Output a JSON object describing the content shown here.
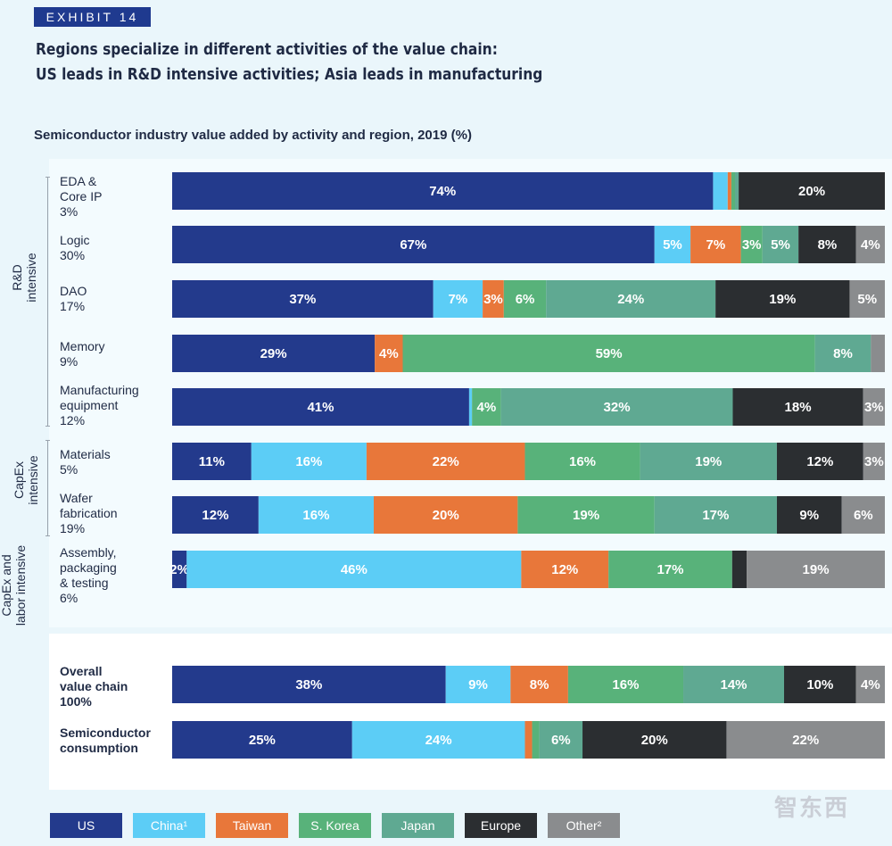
{
  "header": {
    "exhibit": "EXHIBIT 14",
    "title_line1": "Regions specialize in different activities of the value chain:",
    "title_line2": "US leads in R&D intensive activities; Asia leads in manufacturing"
  },
  "colors": {
    "US": "#233a8c",
    "China": "#5ccdf6",
    "Taiwan": "#e8773a",
    "S. Korea": "#58b27a",
    "Japan": "#5fa992",
    "Europe": "#2b2e31",
    "Other": "#8a8c8e"
  },
  "groups": {
    "rd": "R&D intensive",
    "capex": "CapEx intensive",
    "labor": "CapEx and labor intensive"
  },
  "chart_data": {
    "type": "bar",
    "orientation": "horizontal",
    "stacked": true,
    "title": "Semiconductor industry value added by activity and region, 2019 (%)",
    "regions": [
      "US",
      "China",
      "Taiwan",
      "S. Korea",
      "Japan",
      "Europe",
      "Other"
    ],
    "categories": [
      {
        "label": [
          "EDA &",
          "Core IP",
          "3%"
        ],
        "bold": false,
        "values": [
          74,
          2,
          0.5,
          0.5,
          0.5,
          20,
          0
        ],
        "labels": [
          "74%",
          "",
          "",
          "",
          "",
          "20%",
          ""
        ]
      },
      {
        "label": [
          "Logic",
          "30%"
        ],
        "bold": false,
        "values": [
          67,
          5,
          7,
          3,
          5,
          8,
          4
        ],
        "labels": [
          "67%",
          "5%",
          "7%",
          "3%",
          "5%",
          "8%",
          "4%"
        ]
      },
      {
        "label": [
          "DAO",
          "17%"
        ],
        "bold": false,
        "values": [
          37,
          7,
          3,
          6,
          24,
          19,
          5
        ],
        "labels": [
          "37%",
          "7%",
          "3%",
          "6%",
          "24%",
          "19%",
          "5%"
        ]
      },
      {
        "label": [
          "Memory",
          "9%"
        ],
        "bold": false,
        "values": [
          29,
          0,
          4,
          59,
          8,
          0,
          2
        ],
        "labels": [
          "29%",
          "",
          "4%",
          "59%",
          "8%",
          "",
          ""
        ]
      },
      {
        "label": [
          "Manufacturing",
          "equipment",
          "12%"
        ],
        "bold": false,
        "values": [
          41,
          0.4,
          0,
          4,
          32,
          18,
          3
        ],
        "labels": [
          "41%",
          "",
          "",
          "4%",
          "32%",
          "18%",
          "3%"
        ]
      },
      {
        "label": [
          "Materials",
          "5%"
        ],
        "bold": false,
        "values": [
          11,
          16,
          22,
          16,
          19,
          12,
          3
        ],
        "labels": [
          "11%",
          "16%",
          "22%",
          "16%",
          "19%",
          "12%",
          "3%"
        ]
      },
      {
        "label": [
          "Wafer",
          "fabrication",
          "19%"
        ],
        "bold": false,
        "values": [
          12,
          16,
          20,
          19,
          17,
          9,
          6
        ],
        "labels": [
          "12%",
          "16%",
          "20%",
          "19%",
          "17%",
          "9%",
          "6%"
        ]
      },
      {
        "label": [
          "Assembly,",
          "packaging",
          "& testing",
          "6%"
        ],
        "bold": false,
        "values": [
          2,
          46,
          12,
          17,
          0,
          2,
          19
        ],
        "labels": [
          "2%",
          "46%",
          "12%",
          "17%",
          "",
          "",
          "19%"
        ]
      },
      {
        "label": [
          "Overall",
          "value chain",
          "100%"
        ],
        "bold": true,
        "values": [
          38,
          9,
          8,
          16,
          14,
          10,
          4
        ],
        "labels": [
          "38%",
          "9%",
          "8%",
          "16%",
          "14%",
          "10%",
          "4%"
        ]
      },
      {
        "label": [
          "Semiconductor",
          "consumption"
        ],
        "bold": true,
        "values": [
          25,
          24,
          1,
          1,
          6,
          20,
          22
        ],
        "labels": [
          "25%",
          "24%",
          "",
          "",
          "6%",
          "20%",
          "22%"
        ]
      }
    ],
    "legend": [
      "US",
      "China¹",
      "Taiwan",
      "S. Korea",
      "Japan",
      "Europe",
      "Other²"
    ]
  },
  "watermark": "智东西"
}
